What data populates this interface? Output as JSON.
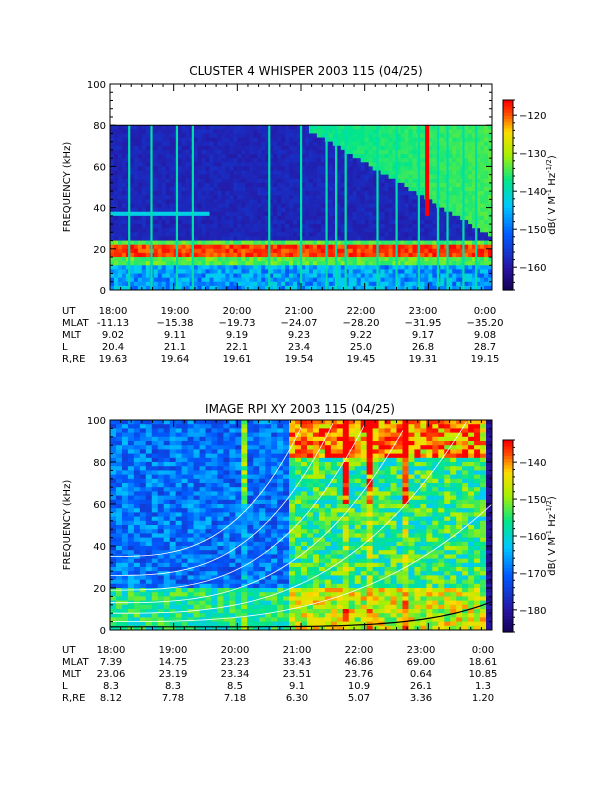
{
  "figure_colors": {
    "background": "#ffffff",
    "axes": "#000000"
  },
  "chart_data": [
    {
      "type": "heatmap",
      "title": "CLUSTER 4 WHISPER 2003 115 (04/25)",
      "ylabel": "FREQUENCY (kHz)",
      "ylim": [
        0,
        100
      ],
      "y_ticks": [
        "0",
        "20",
        "40",
        "60",
        "80",
        "100"
      ],
      "x_hours": [
        18,
        0
      ],
      "data_max_khz": 80,
      "colorbar": {
        "label": "dB( V M^-1 Hz^-1/2)",
        "label_main": "dB( V M",
        "label_sup1": "-1",
        "label_mid": " Hz",
        "label_sup2": "-1/2",
        "label_end": ")",
        "range": [
          -166,
          -116
        ],
        "ticks": [
          -120,
          -130,
          -140,
          -150,
          -160
        ],
        "tick_labels": [
          "−120",
          "−130",
          "−140",
          "−150",
          "−160"
        ]
      },
      "features": {
        "hiss_band_khz": 18,
        "mid_band_khz": 37,
        "mid_band_end_hour": 19.55,
        "spike_hours": [
          18.3,
          18.65,
          19.05,
          19.3,
          20.5,
          21.0,
          21.4,
          21.55,
          21.7,
          22.2,
          22.5,
          22.85,
          23.15,
          23.3,
          23.55,
          23.75
        ]
      },
      "table": {
        "row_labels": [
          "UT",
          "MLAT",
          "MLT",
          "L",
          "R,RE"
        ],
        "UT": [
          "18:00",
          "19:00",
          "20:00",
          "21:00",
          "22:00",
          "23:00",
          "0:00"
        ],
        "MLAT": [
          "-11.13",
          "−15.38",
          "−19.73",
          "−24.07",
          "−28.20",
          "−31.95",
          "−35.20"
        ],
        "MLT": [
          "9.02",
          "9.11",
          "9.19",
          "9.23",
          "9.22",
          "9.17",
          "9.08"
        ],
        "L": [
          "20.4",
          "21.1",
          "22.1",
          "23.4",
          "25.0",
          "26.8",
          "28.7"
        ],
        "R,RE": [
          "19.63",
          "19.64",
          "19.61",
          "19.54",
          "19.45",
          "19.31",
          "19.15"
        ]
      }
    },
    {
      "type": "heatmap",
      "title": "IMAGE RPI XY 2003 115 (04/25)",
      "ylabel": "FREQUENCY (kHz)",
      "ylim": [
        0,
        100
      ],
      "y_ticks": [
        "0",
        "20",
        "40",
        "60",
        "80",
        "100"
      ],
      "x_hours": [
        18,
        0
      ],
      "data_max_khz": 100,
      "colorbar": {
        "label": "dB( V M^-1 Hz^-1/2)",
        "label_main": "dB( V M",
        "label_sup1": "-1",
        "label_mid": " Hz",
        "label_sup2": "-1/2",
        "label_end": ")",
        "range": [
          -186,
          -134
        ],
        "ticks": [
          -140,
          -150,
          -160,
          -170,
          -180
        ],
        "tick_labels": [
          "−140",
          "−150",
          "−160",
          "−170",
          "−180"
        ]
      },
      "features": {
        "curve_offsets_khz": [
          4,
          8,
          13,
          19,
          26,
          35
        ],
        "curve_color": "#ffffff",
        "baseline_color": "#000000"
      },
      "table": {
        "row_labels": [
          "UT",
          "MLAT",
          "MLT",
          "L",
          "R,RE"
        ],
        "UT": [
          "18:00",
          "19:00",
          "20:00",
          "21:00",
          "22:00",
          "23:00",
          "0:00"
        ],
        "MLAT": [
          "7.39",
          "14.75",
          "23.23",
          "33.43",
          "46.86",
          "69.00",
          "18.61"
        ],
        "MLT": [
          "23.06",
          "23.19",
          "23.34",
          "23.51",
          "23.76",
          "0.64",
          "10.85"
        ],
        "L": [
          "8.3",
          "8.3",
          "8.5",
          "9.1",
          "10.9",
          "26.1",
          "1.3"
        ],
        "R,RE": [
          "8.12",
          "7.78",
          "7.18",
          "6.30",
          "5.07",
          "3.36",
          "1.20"
        ]
      }
    }
  ]
}
